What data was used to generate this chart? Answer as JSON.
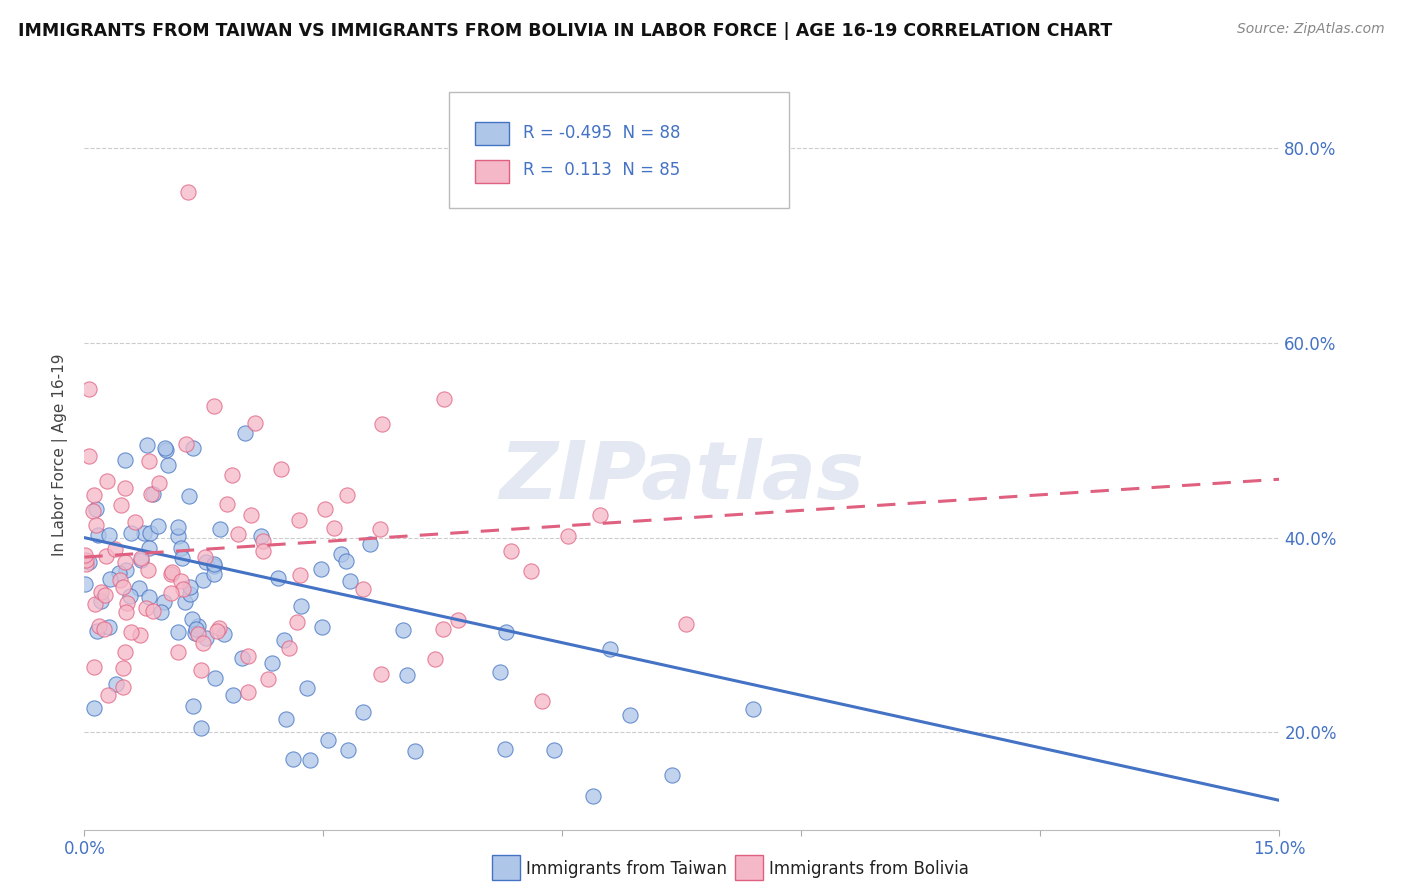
{
  "title": "IMMIGRANTS FROM TAIWAN VS IMMIGRANTS FROM BOLIVIA IN LABOR FORCE | AGE 16-19 CORRELATION CHART",
  "source": "Source: ZipAtlas.com",
  "ylabel": "In Labor Force | Age 16-19",
  "xlim": [
    0.0,
    0.15
  ],
  "ylim": [
    0.1,
    0.87
  ],
  "xticks": [
    0.0,
    0.03,
    0.06,
    0.09,
    0.12,
    0.15
  ],
  "yticks": [
    0.2,
    0.4,
    0.6,
    0.8
  ],
  "ytick_labels": [
    "20.0%",
    "40.0%",
    "60.0%",
    "80.0%"
  ],
  "taiwan_color": "#aec6e8",
  "bolivia_color": "#f4b8c8",
  "taiwan_line_color": "#4472c4",
  "bolivia_line_color": "#e06080",
  "taiwan_R": -0.495,
  "taiwan_N": 88,
  "bolivia_R": 0.113,
  "bolivia_N": 85,
  "legend_taiwan_label": "Immigrants from Taiwan",
  "legend_bolivia_label": "Immigrants from Bolivia",
  "watermark": "ZIPatlas",
  "background_color": "#ffffff",
  "grid_color": "#cccccc",
  "taiwan_seed": 7,
  "bolivia_seed": 13,
  "tw_line_y0": 0.4,
  "tw_line_y1": 0.13,
  "bo_line_y0": 0.38,
  "bo_line_y1": 0.46
}
